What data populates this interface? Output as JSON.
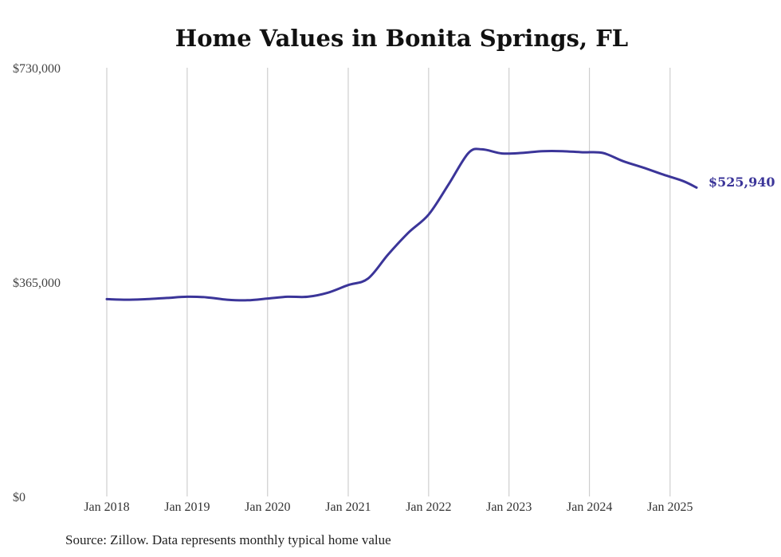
{
  "chart_data": {
    "type": "line",
    "title": "Home Values in Bonita Springs, FL",
    "xlabel": "",
    "ylabel": "",
    "ylim": [
      0,
      730000
    ],
    "yticks": [
      "$0",
      "$365,000",
      "$730,000"
    ],
    "ytick_values": [
      0,
      365000,
      730000
    ],
    "x_tick_labels": [
      "Jan 2018",
      "Jan 2019",
      "Jan 2020",
      "Jan 2021",
      "Jan 2022",
      "Jan 2023",
      "Jan 2024",
      "Jan 2025"
    ],
    "x_tick_dates": [
      "2018-01",
      "2019-01",
      "2020-01",
      "2021-01",
      "2022-01",
      "2023-01",
      "2024-01",
      "2025-01"
    ],
    "grid": "vertical",
    "line_color": "#3b3599",
    "end_value_label": "$525,940",
    "series": [
      {
        "x": [
          "2018-01",
          "2018-04",
          "2018-07",
          "2018-10",
          "2019-01",
          "2019-04",
          "2019-07",
          "2019-10",
          "2020-01",
          "2020-04",
          "2020-07",
          "2020-10",
          "2021-01",
          "2021-04",
          "2021-07",
          "2021-10",
          "2022-01",
          "2022-04",
          "2022-07",
          "2022-09",
          "2022-12",
          "2023-03",
          "2023-06",
          "2023-09",
          "2023-12",
          "2024-03",
          "2024-06",
          "2024-09",
          "2024-12",
          "2025-03",
          "2025-05"
        ],
        "values": [
          336000,
          335000,
          336000,
          338000,
          340000,
          339000,
          335000,
          334000,
          337000,
          340000,
          340000,
          347000,
          360000,
          371000,
          412000,
          449000,
          480000,
          531000,
          585000,
          591000,
          584000,
          585000,
          588000,
          588000,
          586000,
          585000,
          571000,
          560000,
          548000,
          537000,
          525940
        ]
      }
    ],
    "source": "Source: Zillow. Data represents monthly typical home value"
  }
}
